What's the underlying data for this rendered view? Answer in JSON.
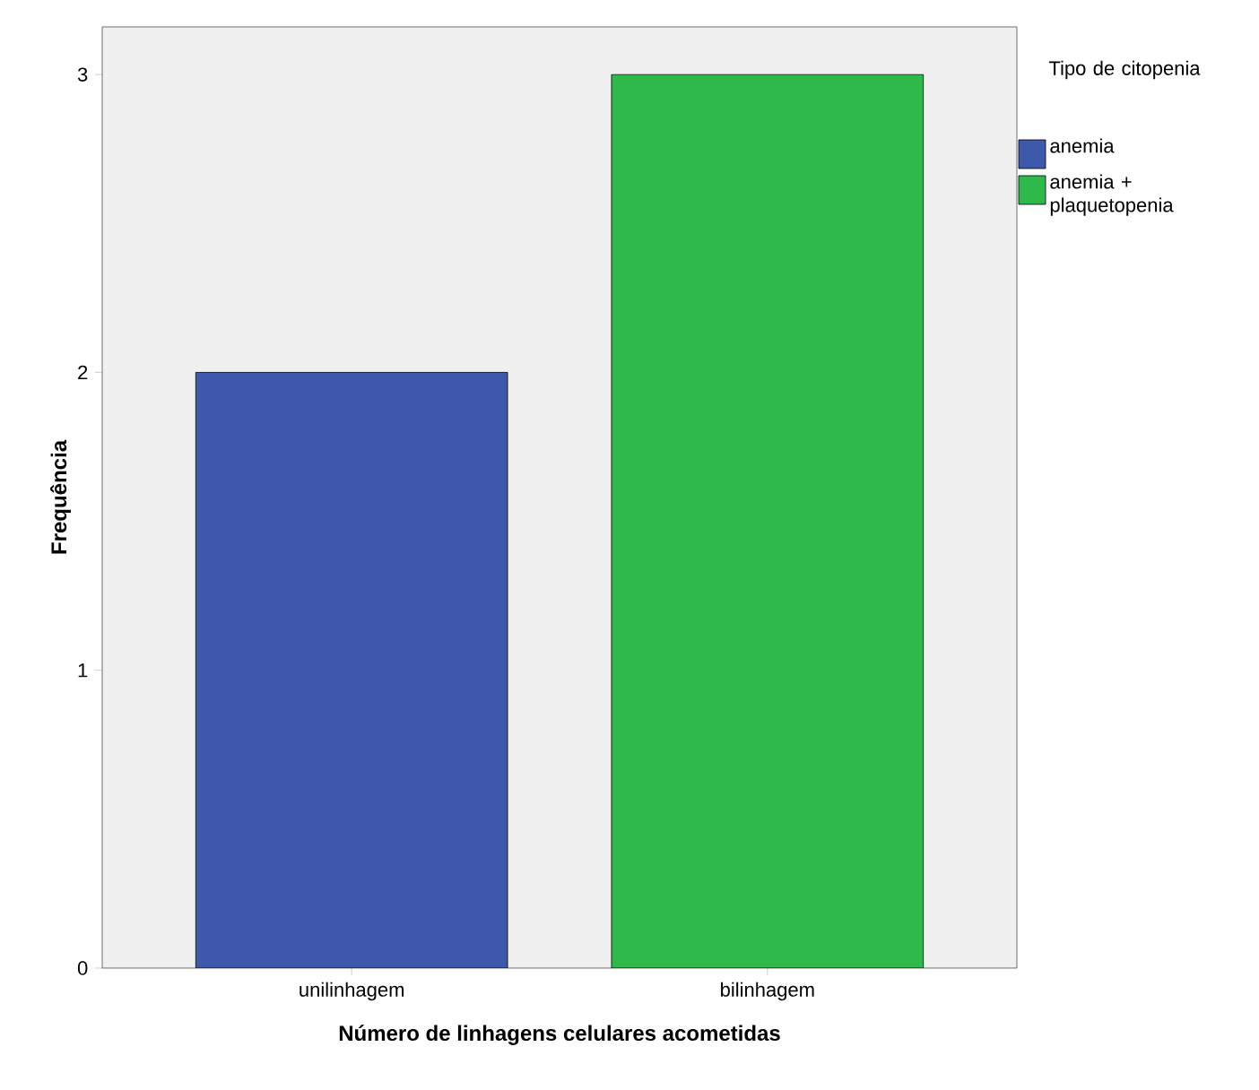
{
  "chart_data": {
    "type": "bar",
    "xlabel": "Número de linhagens celulares acometidas",
    "ylabel": "Frequência",
    "legend_title": "Tipo de citopenia",
    "categories": [
      "unilinhagem",
      "bilinhagem"
    ],
    "series": [
      {
        "name": "anemia",
        "color": "#3e58ac",
        "values": [
          2,
          null
        ]
      },
      {
        "name": "anemia + plaquetopenia",
        "color": "#2eb94a",
        "values": [
          null,
          3
        ]
      }
    ],
    "ylim": [
      0,
      3.16
    ],
    "yticks": [
      0,
      1,
      2,
      3
    ],
    "grid": false,
    "legend": "right"
  }
}
